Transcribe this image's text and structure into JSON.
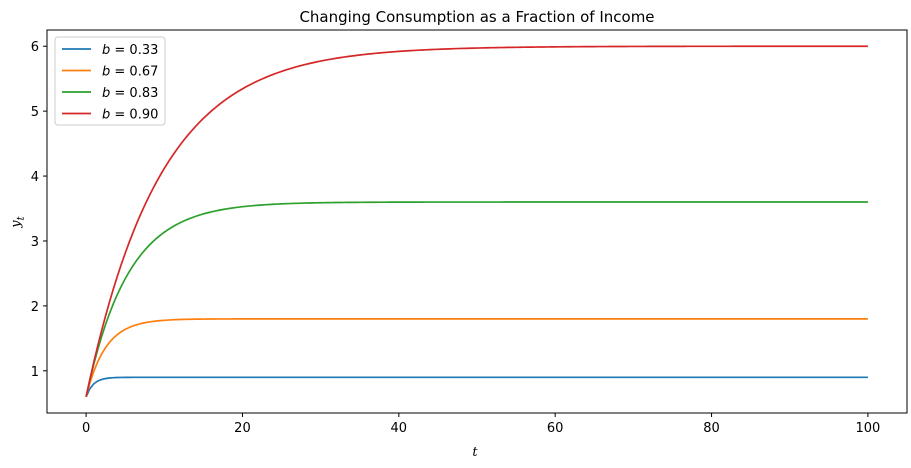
{
  "chart_data": {
    "type": "line",
    "title": "Changing Consumption as a Fraction of Income",
    "xlabel": "t",
    "ylabel": "y",
    "ylabel_subscript": "t",
    "xlim": [
      -5,
      105
    ],
    "ylim": [
      0.35,
      6.25
    ],
    "xticks": [
      0,
      20,
      40,
      60,
      80,
      100
    ],
    "yticks": [
      1,
      2,
      3,
      4,
      5,
      6
    ],
    "grid": false,
    "legend_position": "top-left",
    "series": [
      {
        "name": "b = 0.33",
        "b": 0.33,
        "y0": 0.6,
        "steady_state": 0.9,
        "color": "#1f77b4"
      },
      {
        "name": "b = 0.67",
        "b": 0.67,
        "y0": 0.6,
        "steady_state": 1.8,
        "color": "#ff7f0e"
      },
      {
        "name": "b = 0.83",
        "b": 0.83,
        "y0": 0.6,
        "steady_state": 3.6,
        "color": "#2ca02c"
      },
      {
        "name": "b = 0.90",
        "b": 0.9,
        "y0": 0.6,
        "steady_state": 6.0,
        "color": "#d62728"
      }
    ],
    "x_range": [
      0,
      100
    ]
  }
}
